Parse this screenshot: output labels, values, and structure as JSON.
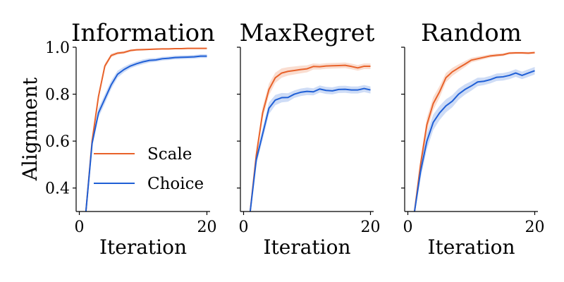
{
  "figure": {
    "ylabel": "Alignment"
  },
  "colors": {
    "Scale": "#e8622a",
    "Choice": "#1f5fd6"
  },
  "chart_data": [
    {
      "type": "line",
      "title": "Information",
      "xlabel": "Iteration",
      "ylabel": "Alignment",
      "xlim": [
        -0.5,
        20.5
      ],
      "ylim": [
        0.3,
        1.0
      ],
      "xticks": [
        0,
        20
      ],
      "yticks": [
        0.4,
        0.6,
        0.8,
        1.0
      ],
      "ytick_labels": [
        "0.4",
        "0.6",
        "0.8",
        "1.0"
      ],
      "show_yticklabels": true,
      "legend": "center-right",
      "x": [
        1,
        2,
        3,
        4,
        5,
        6,
        7,
        8,
        9,
        10,
        11,
        12,
        13,
        14,
        15,
        16,
        17,
        18,
        19,
        20
      ],
      "series": [
        {
          "name": "Scale",
          "values": [
            0.29,
            0.6,
            0.79,
            0.92,
            0.965,
            0.975,
            0.978,
            0.986,
            0.989,
            0.99,
            0.991,
            0.992,
            0.993,
            0.993,
            0.994,
            0.994,
            0.995,
            0.995,
            0.995,
            0.995
          ],
          "band": [
            0.008,
            0.01,
            0.012,
            0.01,
            0.008,
            0.006,
            0.006,
            0.005,
            0.004,
            0.004,
            0.003,
            0.003,
            0.003,
            0.003,
            0.003,
            0.003,
            0.003,
            0.003,
            0.003,
            0.003
          ]
        },
        {
          "name": "Choice",
          "values": [
            0.29,
            0.59,
            0.72,
            0.78,
            0.84,
            0.885,
            0.905,
            0.92,
            0.93,
            0.938,
            0.944,
            0.946,
            0.951,
            0.953,
            0.956,
            0.957,
            0.958,
            0.959,
            0.962,
            0.962
          ],
          "band": [
            0.01,
            0.015,
            0.02,
            0.02,
            0.018,
            0.015,
            0.012,
            0.01,
            0.01,
            0.01,
            0.009,
            0.008,
            0.008,
            0.008,
            0.008,
            0.008,
            0.008,
            0.008,
            0.008,
            0.008
          ]
        }
      ]
    },
    {
      "type": "line",
      "title": "MaxRegret",
      "xlabel": "Iteration",
      "ylabel": "",
      "xlim": [
        -0.5,
        20.5
      ],
      "ylim": [
        0.3,
        1.0
      ],
      "xticks": [
        0,
        20
      ],
      "yticks": [
        0.4,
        0.6,
        0.8,
        1.0
      ],
      "show_yticklabels": false,
      "x": [
        1,
        2,
        3,
        4,
        5,
        6,
        7,
        8,
        9,
        10,
        11,
        12,
        13,
        14,
        15,
        16,
        17,
        18,
        19,
        20
      ],
      "series": [
        {
          "name": "Scale",
          "values": [
            0.29,
            0.54,
            0.72,
            0.82,
            0.87,
            0.89,
            0.897,
            0.901,
            0.905,
            0.908,
            0.918,
            0.917,
            0.92,
            0.921,
            0.922,
            0.923,
            0.918,
            0.912,
            0.919,
            0.919
          ],
          "band": [
            0.01,
            0.02,
            0.025,
            0.025,
            0.022,
            0.02,
            0.018,
            0.017,
            0.016,
            0.015,
            0.013,
            0.012,
            0.012,
            0.012,
            0.012,
            0.012,
            0.012,
            0.012,
            0.012,
            0.012
          ]
        },
        {
          "name": "Choice",
          "values": [
            0.29,
            0.52,
            0.63,
            0.74,
            0.775,
            0.785,
            0.786,
            0.8,
            0.808,
            0.812,
            0.81,
            0.822,
            0.816,
            0.814,
            0.82,
            0.821,
            0.818,
            0.818,
            0.824,
            0.818
          ],
          "band": [
            0.01,
            0.02,
            0.025,
            0.025,
            0.022,
            0.02,
            0.018,
            0.016,
            0.016,
            0.016,
            0.015,
            0.015,
            0.015,
            0.015,
            0.015,
            0.015,
            0.015,
            0.015,
            0.015,
            0.015
          ]
        }
      ]
    },
    {
      "type": "line",
      "title": "Random",
      "xlabel": "Iteration",
      "ylabel": "",
      "xlim": [
        -0.5,
        20.5
      ],
      "ylim": [
        0.3,
        1.0
      ],
      "xticks": [
        0,
        20
      ],
      "yticks": [
        0.4,
        0.6,
        0.8,
        1.0
      ],
      "show_yticklabels": false,
      "x": [
        1,
        2,
        3,
        4,
        5,
        6,
        7,
        8,
        9,
        10,
        11,
        12,
        13,
        14,
        15,
        16,
        17,
        18,
        19,
        20
      ],
      "series": [
        {
          "name": "Scale",
          "values": [
            0.29,
            0.5,
            0.67,
            0.76,
            0.81,
            0.87,
            0.895,
            0.912,
            0.928,
            0.945,
            0.951,
            0.957,
            0.963,
            0.966,
            0.968,
            0.975,
            0.976,
            0.976,
            0.975,
            0.977
          ],
          "band": [
            0.01,
            0.025,
            0.03,
            0.028,
            0.025,
            0.02,
            0.017,
            0.015,
            0.013,
            0.01,
            0.009,
            0.008,
            0.007,
            0.007,
            0.006,
            0.005,
            0.005,
            0.005,
            0.005,
            0.005
          ]
        },
        {
          "name": "Choice",
          "values": [
            0.29,
            0.47,
            0.6,
            0.68,
            0.72,
            0.75,
            0.77,
            0.8,
            0.82,
            0.835,
            0.852,
            0.855,
            0.862,
            0.872,
            0.874,
            0.88,
            0.89,
            0.88,
            0.89,
            0.9
          ],
          "band": [
            0.01,
            0.03,
            0.035,
            0.033,
            0.03,
            0.028,
            0.026,
            0.024,
            0.022,
            0.02,
            0.018,
            0.016,
            0.016,
            0.016,
            0.016,
            0.016,
            0.016,
            0.016,
            0.016,
            0.016
          ]
        }
      ]
    }
  ]
}
